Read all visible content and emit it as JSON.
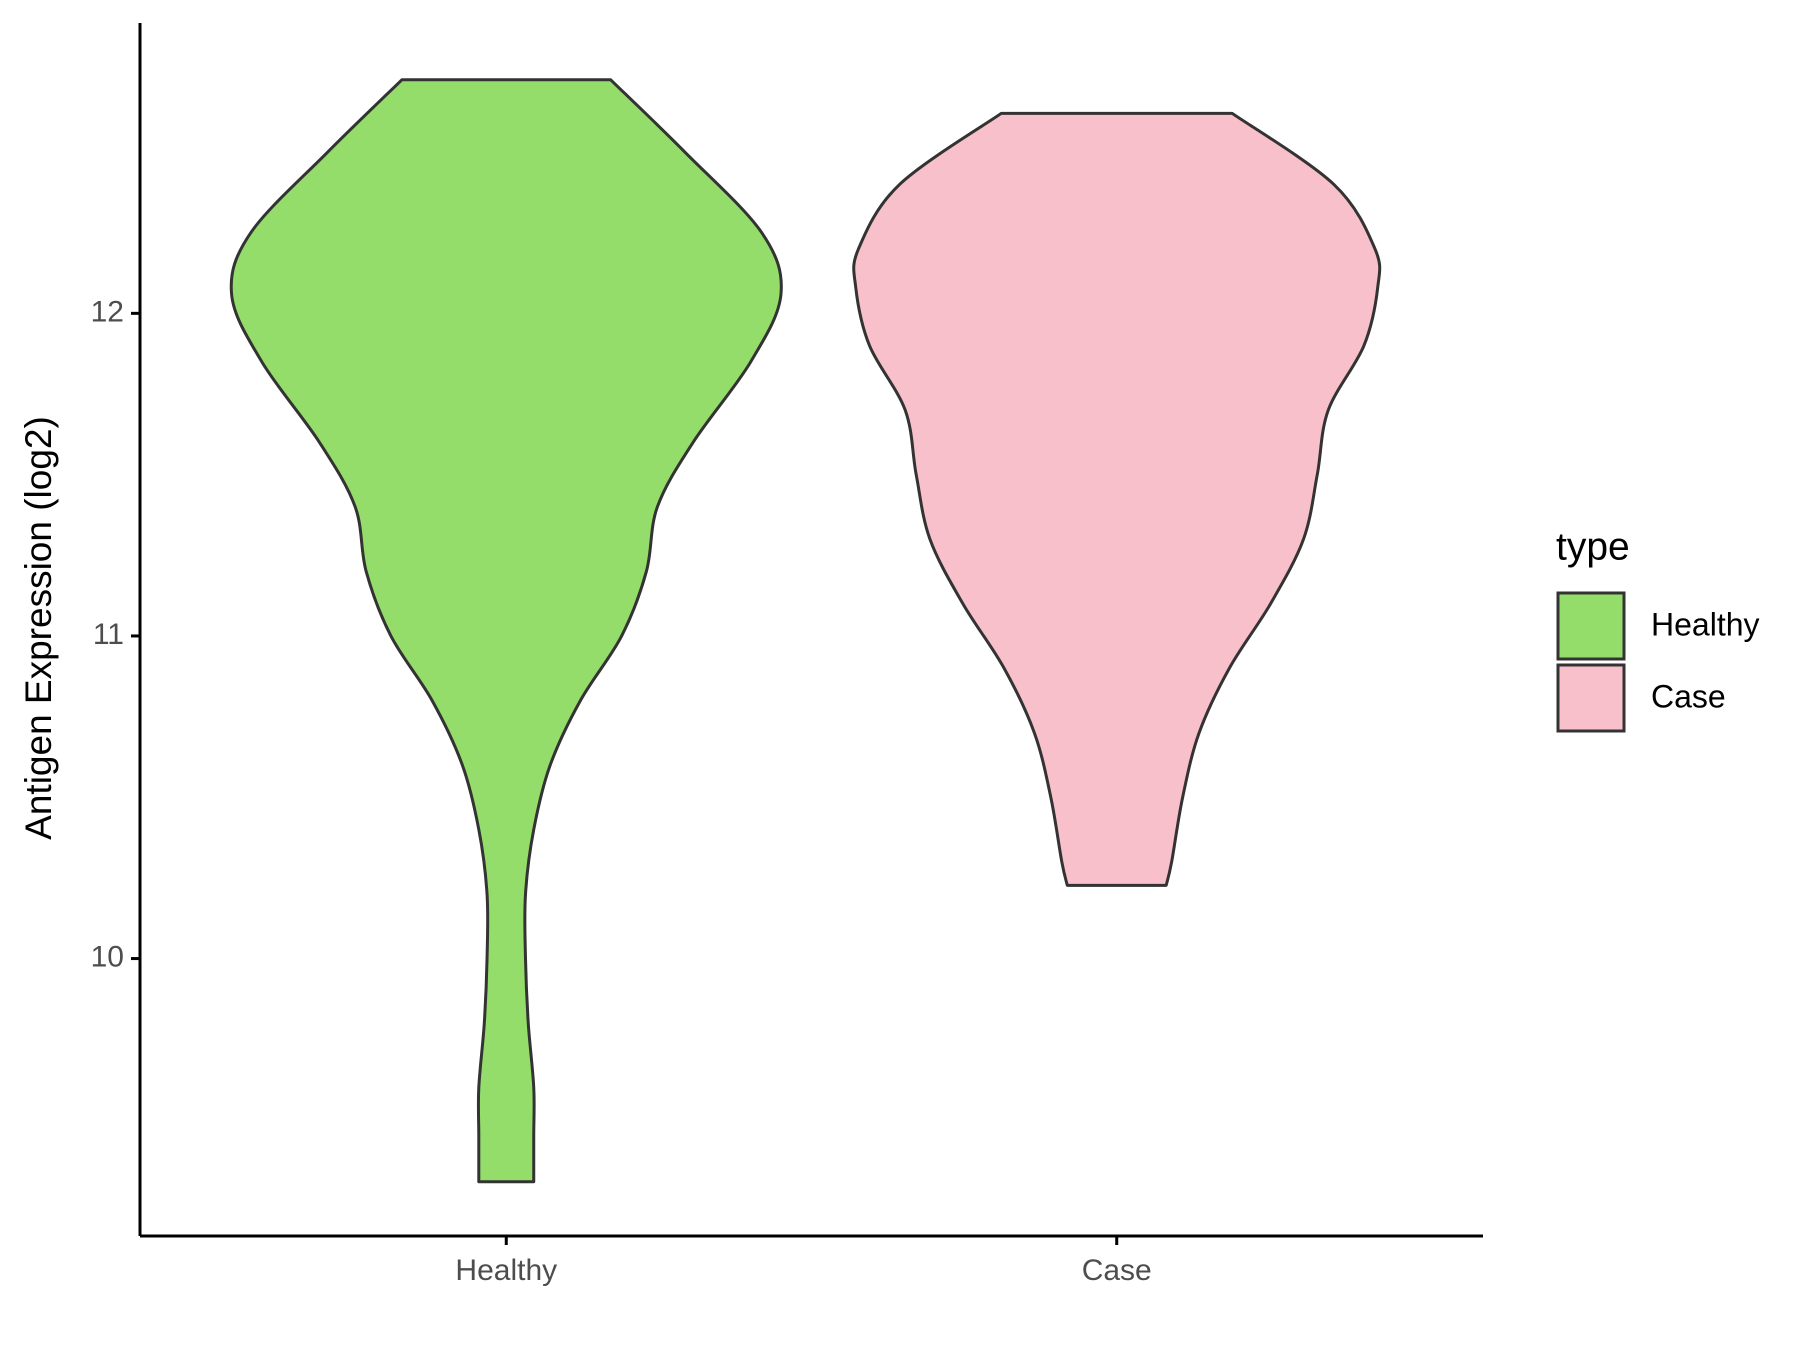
{
  "chart_data": {
    "type": "violin",
    "y_label": "Antigen Expression (log2)",
    "categories": [
      "Healthy",
      "Case"
    ],
    "legend_title": "type",
    "legend_position": "right",
    "ylim": [
      9.14,
      12.9
    ],
    "yticks": [
      10,
      11,
      12
    ],
    "grid": false,
    "outline_color": "#333333",
    "series": [
      {
        "name": "Healthy",
        "color": "#95dd6b",
        "y": [
          12.724,
          12.5,
          12.25,
          12.06,
          11.85,
          11.6,
          11.4,
          11.2,
          11.0,
          10.8,
          10.6,
          10.4,
          10.2,
          10.0,
          9.8,
          9.6,
          9.45,
          9.308
        ],
        "density": [
          0.38,
          0.65,
          0.93,
          1.0,
          0.89,
          0.68,
          0.55,
          0.51,
          0.42,
          0.27,
          0.16,
          0.1,
          0.07,
          0.07,
          0.08,
          0.1,
          0.1,
          0.1
        ]
      },
      {
        "name": "Case",
        "color": "#f8c0cb",
        "y": [
          12.62,
          12.4,
          12.2,
          12.08,
          11.9,
          11.7,
          11.5,
          11.3,
          11.1,
          10.9,
          10.7,
          10.5,
          10.3,
          10.227
        ],
        "density": [
          0.42,
          0.79,
          0.94,
          0.95,
          0.9,
          0.77,
          0.73,
          0.68,
          0.56,
          0.41,
          0.3,
          0.24,
          0.2,
          0.18
        ]
      }
    ]
  }
}
